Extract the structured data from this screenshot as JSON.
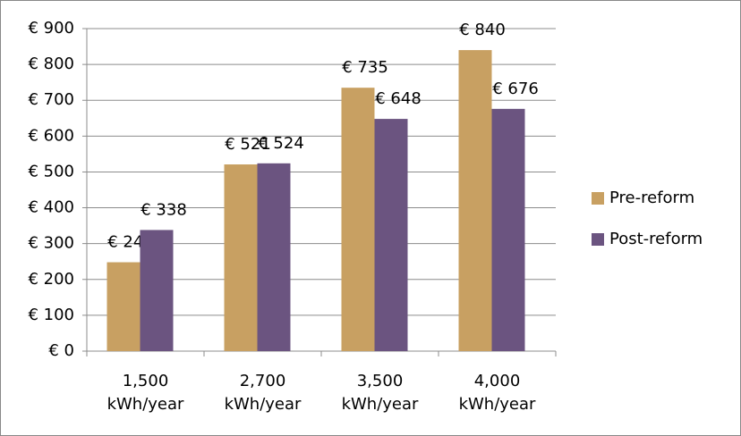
{
  "chart_data": {
    "type": "bar",
    "categories": [
      "1,500 kWh/year",
      "2,700 kWh/year",
      "3,500 kWh/year",
      "4,000 kWh/year"
    ],
    "series": [
      {
        "name": "Pre-reform",
        "color": "#c8a062",
        "values": [
          248,
          521,
          735,
          840
        ],
        "value_labels": [
          "€ 248",
          "€ 521",
          "€ 735",
          "€ 840"
        ]
      },
      {
        "name": "Post-reform",
        "color": "#6b5480",
        "values": [
          338,
          524,
          648,
          676
        ],
        "value_labels": [
          "€ 338",
          "€ 524",
          "€ 648",
          "€ 676"
        ]
      }
    ],
    "ylim": [
      0,
      900
    ],
    "yticks": [
      {
        "value": 0,
        "label": "€ 0"
      },
      {
        "value": 100,
        "label": "€ 100"
      },
      {
        "value": 200,
        "label": "€ 200"
      },
      {
        "value": 300,
        "label": "€ 300"
      },
      {
        "value": 400,
        "label": "€ 400"
      },
      {
        "value": 500,
        "label": "€ 500"
      },
      {
        "value": 600,
        "label": "€ 600"
      },
      {
        "value": 700,
        "label": "€ 700"
      },
      {
        "value": 800,
        "label": "€ 800"
      },
      {
        "value": 900,
        "label": "€ 900"
      }
    ],
    "grid": true,
    "legend": "right"
  }
}
